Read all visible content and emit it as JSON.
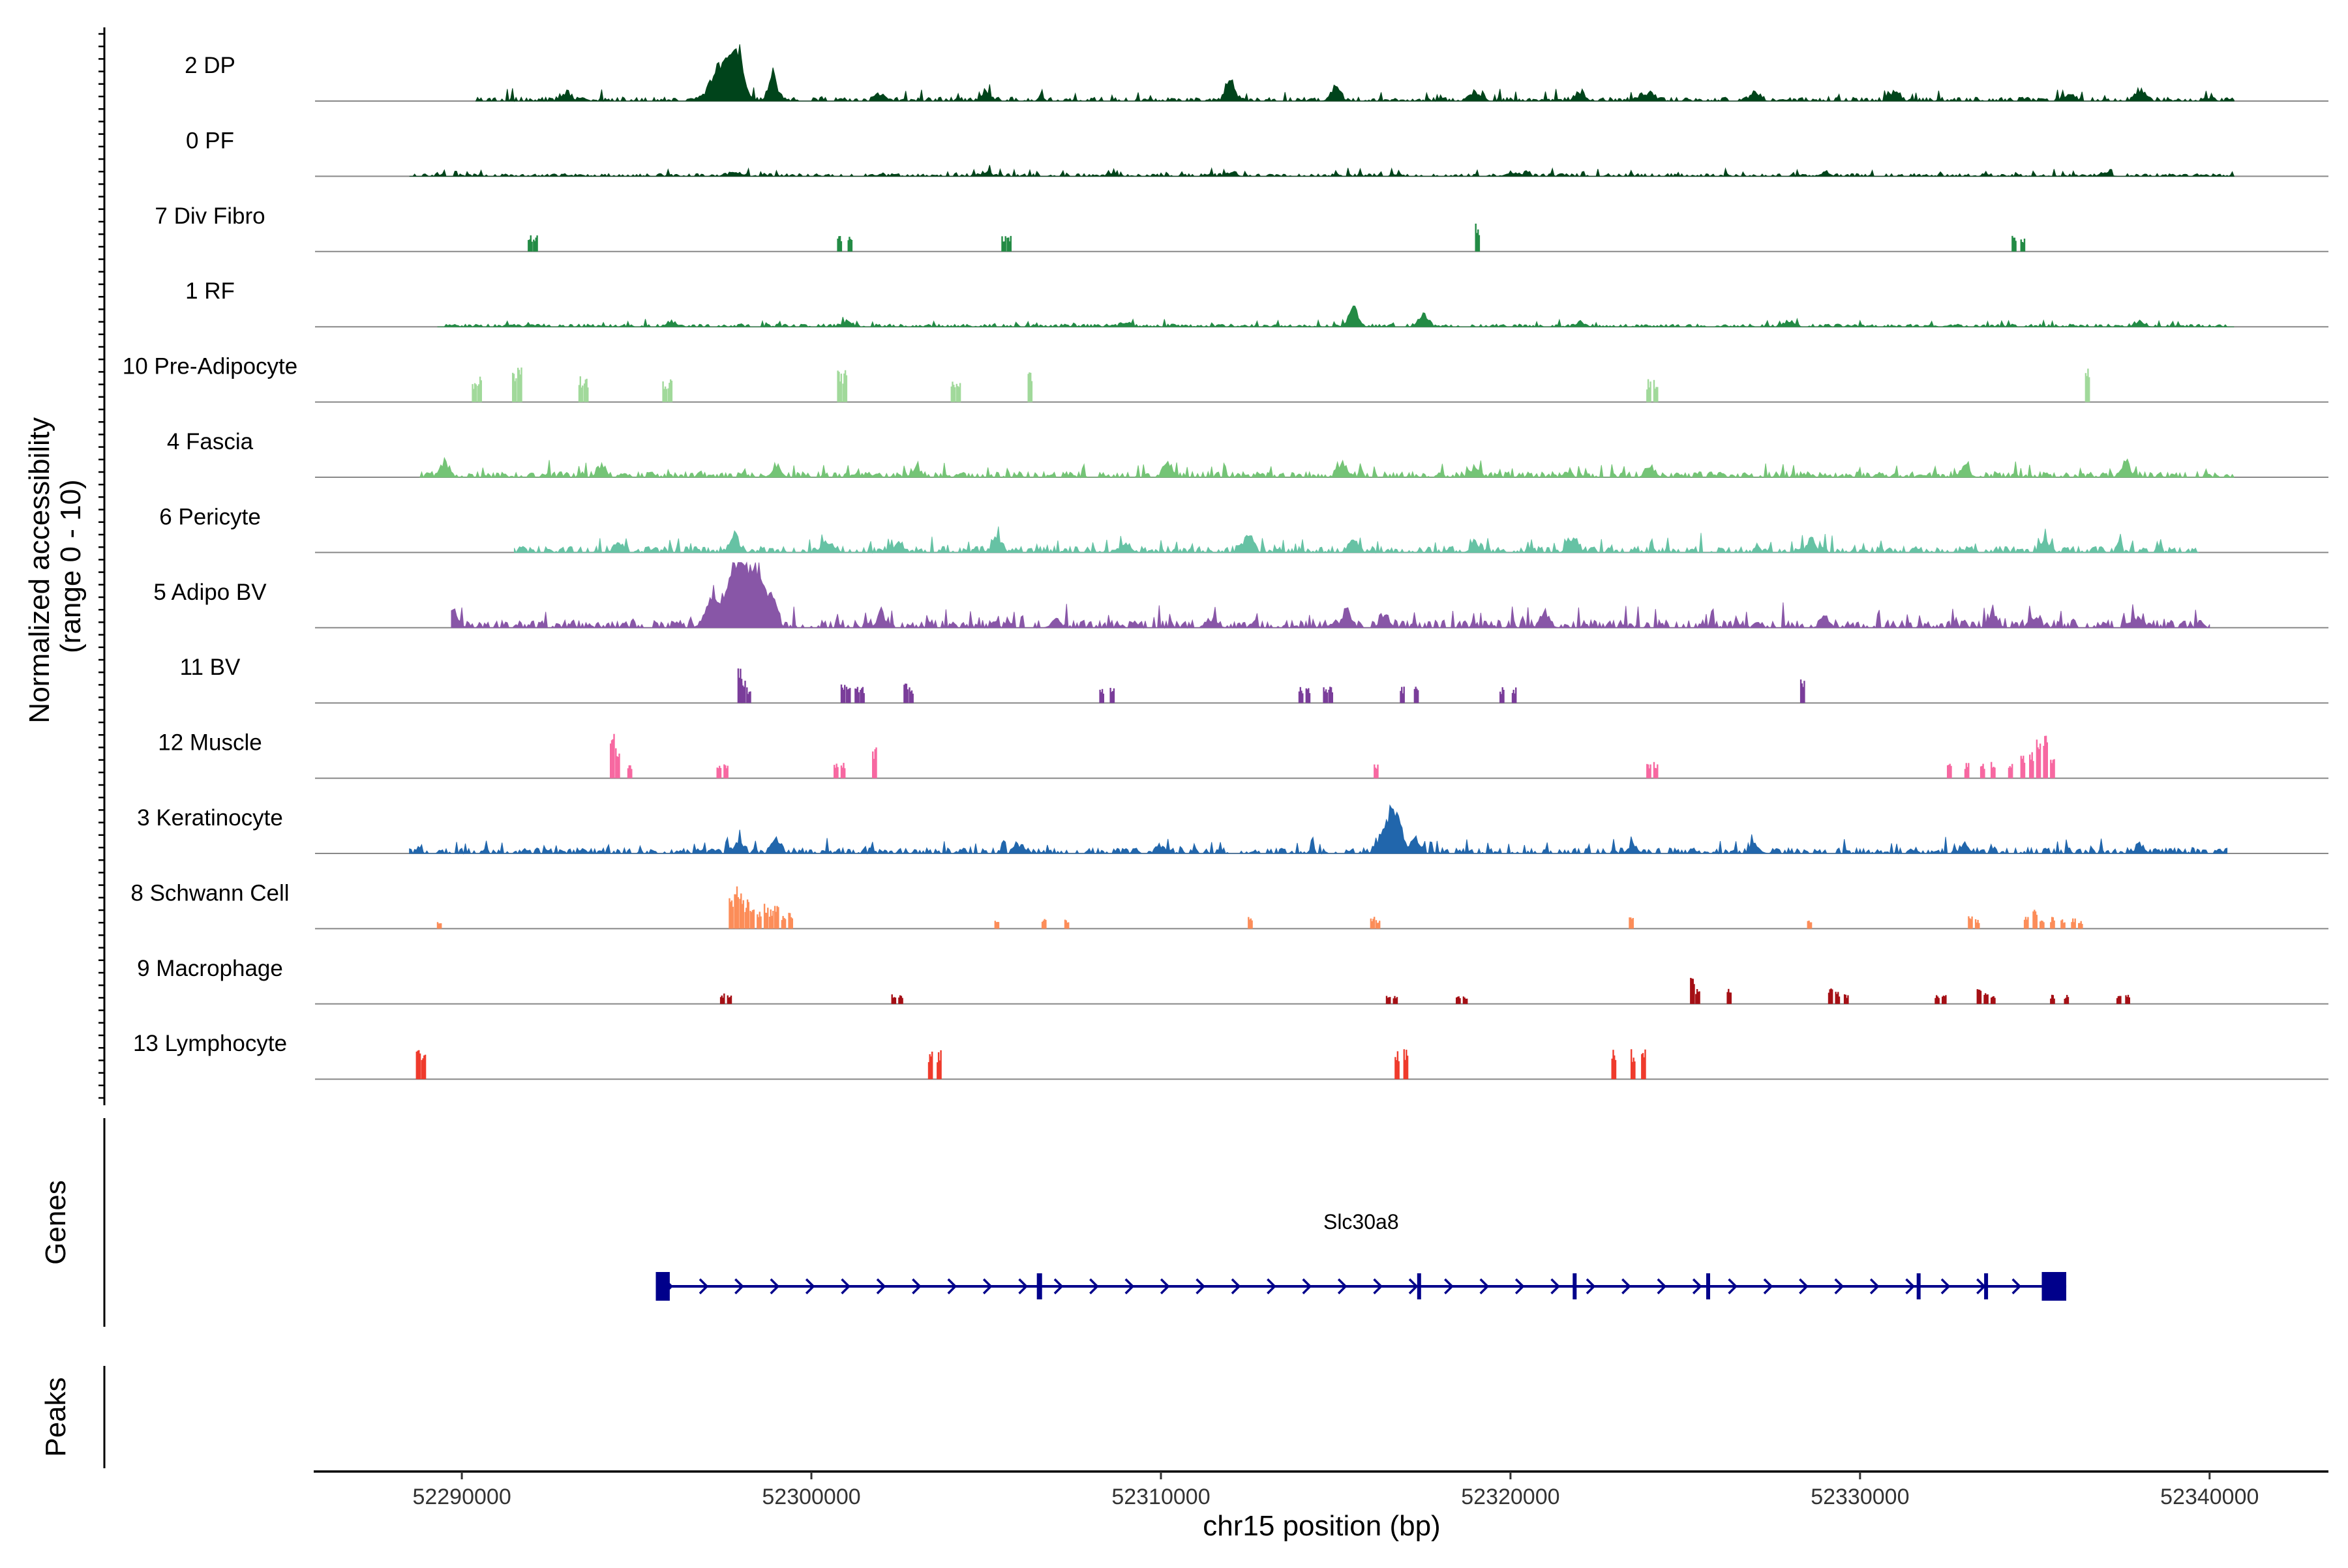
{
  "chart_data": {
    "type": "area",
    "title": "",
    "ylabel_line1": "Normalized accessibility",
    "ylabel_line2": "(range 0 - 10)",
    "xlabel": "chr15 position (bp)",
    "genes_label": "Genes",
    "peaks_label": "Peaks",
    "xlim": [
      52285800,
      52343400
    ],
    "ylim": [
      0,
      10
    ],
    "x_ticks": [
      52290000,
      52300000,
      52310000,
      52320000,
      52330000,
      52340000
    ],
    "x_tick_labels": [
      "52290000",
      "52300000",
      "52310000",
      "52320000",
      "52330000",
      "52340000"
    ],
    "tracks": [
      {
        "name": "2 DP",
        "color": "#00441b",
        "mode": "dense",
        "range": [
          52290400,
          52340700
        ],
        "peaks": [
          [
            52297800,
            9.5
          ],
          [
            52297300,
            5
          ],
          [
            52298900,
            4
          ],
          [
            52312000,
            3
          ],
          [
            52315000,
            2.5
          ],
          [
            52324000,
            1.6
          ],
          [
            52338000,
            1.8
          ],
          [
            52305000,
            1.6
          ],
          [
            52322000,
            1.4
          ],
          [
            52331000,
            1.6
          ],
          [
            52293000,
            1.2
          ],
          [
            52302000,
            1.2
          ],
          [
            52319000,
            1.4
          ],
          [
            52327000,
            1.4
          ],
          [
            52336000,
            1.2
          ]
        ]
      },
      {
        "name": "0 PF",
        "color": "#00441b",
        "mode": "dense",
        "range": [
          52288500,
          52340700
        ],
        "peaks": [
          [
            52297800,
            0.7
          ],
          [
            52305000,
            0.6
          ],
          [
            52312000,
            0.6
          ],
          [
            52320000,
            0.6
          ],
          [
            52329000,
            0.6
          ],
          [
            52337000,
            0.6
          ]
        ],
        "base": 0.25
      },
      {
        "name": "7 Div Fibro",
        "color": "#238b45",
        "mode": "sparse",
        "peaks": [
          [
            52291950,
            2.5
          ],
          [
            52292100,
            2.5
          ],
          [
            52300800,
            2.5
          ],
          [
            52301100,
            2.5
          ],
          [
            52305500,
            2.5
          ],
          [
            52305650,
            2.5
          ],
          [
            52319050,
            4.5
          ],
          [
            52334400,
            2.5
          ],
          [
            52334650,
            2.5
          ]
        ]
      },
      {
        "name": "1 RF",
        "color": "#238b45",
        "mode": "dense",
        "range": [
          52289300,
          52340700
        ],
        "peaks": [
          [
            52315500,
            3.3
          ],
          [
            52317500,
            2.2
          ],
          [
            52301000,
            0.8
          ],
          [
            52296000,
            0.8
          ],
          [
            52328000,
            0.8
          ],
          [
            52338000,
            0.8
          ],
          [
            52309000,
            0.7
          ],
          [
            52322000,
            0.7
          ]
        ],
        "base": 0.25
      },
      {
        "name": "10 Pre-Adipocyte",
        "color": "#a1d99b",
        "mode": "sparse",
        "peaks": [
          [
            52290350,
            3.5
          ],
          [
            52290500,
            4.2
          ],
          [
            52291500,
            4.5
          ],
          [
            52291650,
            6
          ],
          [
            52293400,
            4
          ],
          [
            52293550,
            4
          ],
          [
            52295800,
            3.5
          ],
          [
            52295950,
            3.5
          ],
          [
            52300800,
            5
          ],
          [
            52300950,
            5
          ],
          [
            52304050,
            3.5
          ],
          [
            52304200,
            3.5
          ],
          [
            52306250,
            5
          ],
          [
            52323950,
            3.5
          ],
          [
            52324150,
            3.5
          ],
          [
            52336500,
            6.5
          ]
        ]
      },
      {
        "name": "4 Fascia",
        "color": "#74c476",
        "mode": "dense",
        "range": [
          52288800,
          52340700
        ],
        "peaks": [
          [
            52289500,
            2.4
          ],
          [
            52294000,
            1.6
          ],
          [
            52299000,
            1.6
          ],
          [
            52310200,
            2
          ],
          [
            52315200,
            2
          ],
          [
            52319000,
            1.5
          ],
          [
            52324000,
            1.6
          ],
          [
            52333000,
            1.6
          ],
          [
            52337600,
            2.4
          ],
          [
            52303000,
            1.4
          ]
        ],
        "base": 0.5
      },
      {
        "name": "6 Pericyte",
        "color": "#66c2a4",
        "mode": "dense",
        "range": [
          52291500,
          52339700
        ],
        "peaks": [
          [
            52297800,
            2.6
          ],
          [
            52305300,
            2.4
          ],
          [
            52312500,
            2.6
          ],
          [
            52315500,
            2.4
          ],
          [
            52321800,
            2.6
          ],
          [
            52328600,
            2
          ],
          [
            52335300,
            1.8
          ],
          [
            52294500,
            1.6
          ],
          [
            52300500,
            1.6
          ],
          [
            52302500,
            1.6
          ],
          [
            52309000,
            1.4
          ],
          [
            52319000,
            1.4
          ]
        ],
        "base": 0.55
      },
      {
        "name": "5 Adipo BV",
        "color": "#8856a7",
        "mode": "dense",
        "range": [
          52289700,
          52340000
        ],
        "peaks": [
          [
            52297800,
            9.2
          ],
          [
            52298100,
            6
          ],
          [
            52298500,
            8.6
          ],
          [
            52297200,
            4.5
          ],
          [
            52298900,
            4
          ],
          [
            52289800,
            2.1
          ],
          [
            52302000,
            2.1
          ],
          [
            52315300,
            2.6
          ],
          [
            52316400,
            2
          ],
          [
            52321000,
            2.1
          ],
          [
            52333800,
            2.2
          ],
          [
            52335000,
            1.8
          ],
          [
            52329000,
            1.8
          ],
          [
            52307000,
            1.4
          ],
          [
            52311500,
            1.4
          ],
          [
            52338000,
            1.5
          ]
        ],
        "base": 0.7
      },
      {
        "name": "11 BV",
        "color": "#7a3d9a",
        "mode": "sparse",
        "peaks": [
          [
            52297950,
            5.6
          ],
          [
            52298050,
            4
          ],
          [
            52298200,
            2.5
          ],
          [
            52300900,
            3.6
          ],
          [
            52301050,
            2.5
          ],
          [
            52301300,
            2.5
          ],
          [
            52301450,
            2.5
          ],
          [
            52302700,
            3.6
          ],
          [
            52302850,
            2.5
          ],
          [
            52308300,
            2.5
          ],
          [
            52308600,
            2.5
          ],
          [
            52314000,
            2.5
          ],
          [
            52314200,
            2.5
          ],
          [
            52314700,
            2.5
          ],
          [
            52314850,
            2.5
          ],
          [
            52316900,
            2.5
          ],
          [
            52317300,
            2.5
          ],
          [
            52319750,
            2.5
          ],
          [
            52320100,
            2.5
          ],
          [
            52328350,
            4
          ]
        ]
      },
      {
        "name": "12 Muscle",
        "color": "#f768a1",
        "mode": "sparse",
        "peaks": [
          [
            52294300,
            7
          ],
          [
            52294450,
            5
          ],
          [
            52294800,
            2.5
          ],
          [
            52297350,
            2.5
          ],
          [
            52297550,
            2.5
          ],
          [
            52300700,
            2.5
          ],
          [
            52300900,
            2.5
          ],
          [
            52301800,
            5
          ],
          [
            52316150,
            2.5
          ],
          [
            52323950,
            2.5
          ],
          [
            52324150,
            2.5
          ],
          [
            52332550,
            2.5
          ],
          [
            52333050,
            2.5
          ],
          [
            52333500,
            2.5
          ],
          [
            52333800,
            2.5
          ],
          [
            52334300,
            2.5
          ],
          [
            52334650,
            3.5
          ],
          [
            52334900,
            4
          ],
          [
            52335100,
            7
          ],
          [
            52335300,
            7
          ],
          [
            52335500,
            4
          ]
        ]
      },
      {
        "name": "3 Keratinocyte",
        "color": "#2166ac",
        "mode": "dense",
        "range": [
          52288500,
          52340500
        ],
        "peaks": [
          [
            52316550,
            6.3
          ],
          [
            52316800,
            3
          ],
          [
            52317300,
            2
          ],
          [
            52297900,
            1.7
          ],
          [
            52299000,
            2
          ],
          [
            52323500,
            1.3
          ],
          [
            52327000,
            1.3
          ],
          [
            52306000,
            1.1
          ],
          [
            52310000,
            1.1
          ],
          [
            52333000,
            1.2
          ],
          [
            52338000,
            1.2
          ]
        ],
        "base": 0.5
      },
      {
        "name": "8 Schwann Cell",
        "color": "#fc8d59",
        "mode": "sparse",
        "peaks": [
          [
            52289350,
            1.2
          ],
          [
            52297700,
            6
          ],
          [
            52297850,
            6.5
          ],
          [
            52298000,
            5.5
          ],
          [
            52298150,
            4.5
          ],
          [
            52298300,
            4
          ],
          [
            52298500,
            3
          ],
          [
            52298700,
            4.2
          ],
          [
            52298850,
            3
          ],
          [
            52299000,
            3.5
          ],
          [
            52299200,
            2
          ],
          [
            52299400,
            2.5
          ],
          [
            52305300,
            1.5
          ],
          [
            52306650,
            1.5
          ],
          [
            52307300,
            1.5
          ],
          [
            52312550,
            2
          ],
          [
            52316050,
            2
          ],
          [
            52316200,
            1.5
          ],
          [
            52323450,
            2
          ],
          [
            52328550,
            1.5
          ],
          [
            52333150,
            2.5
          ],
          [
            52333350,
            1.5
          ],
          [
            52334750,
            2
          ],
          [
            52335000,
            3
          ],
          [
            52335200,
            1.8
          ],
          [
            52335500,
            1.8
          ],
          [
            52335800,
            1.6
          ],
          [
            52336100,
            1.6
          ],
          [
            52336300,
            1.3
          ]
        ]
      },
      {
        "name": "9 Macrophage",
        "color": "#a50f15",
        "mode": "sparse",
        "peaks": [
          [
            52297450,
            1.6
          ],
          [
            52297650,
            1.4
          ],
          [
            52302350,
            1.6
          ],
          [
            52302550,
            1.4
          ],
          [
            52316500,
            1.4
          ],
          [
            52316700,
            1.4
          ],
          [
            52318500,
            1.4
          ],
          [
            52318700,
            1.2
          ],
          [
            52325200,
            4.2
          ],
          [
            52325350,
            2.5
          ],
          [
            52326250,
            2.5
          ],
          [
            52329150,
            2.8
          ],
          [
            52329350,
            2
          ],
          [
            52329600,
            1.6
          ],
          [
            52332200,
            1.4
          ],
          [
            52332400,
            1.4
          ],
          [
            52333400,
            2.5
          ],
          [
            52333600,
            2.2
          ],
          [
            52333800,
            1.5
          ],
          [
            52335500,
            1.4
          ],
          [
            52335900,
            1.4
          ],
          [
            52337400,
            1.4
          ],
          [
            52337650,
            1.4
          ]
        ]
      },
      {
        "name": "13 Lymphocyte",
        "color": "#ef3b2c",
        "mode": "sparse",
        "peaks": [
          [
            52288750,
            4.6
          ],
          [
            52288900,
            4.6
          ],
          [
            52303400,
            4.6
          ],
          [
            52303650,
            4.6
          ],
          [
            52316750,
            4.6
          ],
          [
            52317000,
            4.6
          ],
          [
            52322950,
            4.6
          ],
          [
            52323500,
            4.6
          ],
          [
            52323800,
            4.6
          ]
        ]
      }
    ],
    "gene": {
      "name": "Slc30a8",
      "color": "#00008b",
      "strand": "+",
      "start": 52295550,
      "end": 52335900,
      "exons": [
        [
          52295550,
          52295950
        ],
        [
          52306450,
          52306600
        ],
        [
          52317330,
          52317430
        ],
        [
          52321780,
          52321880
        ],
        [
          52325600,
          52325700
        ],
        [
          52331620,
          52331720
        ],
        [
          52333550,
          52333650
        ],
        [
          52335200,
          52335900
        ]
      ]
    },
    "peaks_track": []
  }
}
